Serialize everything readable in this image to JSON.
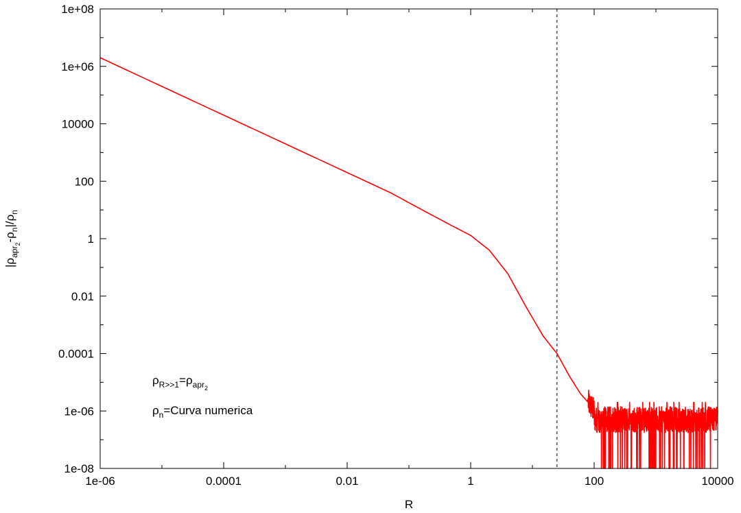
{
  "chart_data": {
    "type": "line",
    "title": "",
    "xlabel": "R",
    "ylabel": "|ρapr2-ρn|/ρn",
    "x_scale": "log",
    "y_scale": "log",
    "xlim": [
      1e-06,
      10000
    ],
    "ylim": [
      1e-08,
      100000000.0
    ],
    "x_ticks": [
      "1e-06",
      "0.0001",
      "0.01",
      "1",
      "100",
      "10000"
    ],
    "y_ticks": [
      "1e-08",
      "1e-06",
      "0.0001",
      "0.01",
      "1",
      "100",
      "10000",
      "1e+06",
      "1e+08"
    ],
    "grid": false,
    "vertical_reference_line": {
      "x": 25,
      "style": "dashed",
      "color": "#000000"
    },
    "series": [
      {
        "color": "#ff0000",
        "x": [
          1e-06,
          1e-05,
          0.0001,
          0.001,
          0.01,
          0.05,
          0.2,
          0.5,
          1,
          2,
          4,
          8,
          15,
          25,
          40,
          60,
          80,
          100,
          200,
          1000,
          10000
        ],
        "y": [
          2000000.0,
          200000.0,
          20000.0,
          2000,
          200,
          40,
          8,
          2.8,
          1.3,
          0.4,
          0.06,
          0.004,
          0.0004,
          0.0001,
          1.6e-05,
          4e-06,
          2e-06,
          1e-06,
          5e-07,
          5e-07,
          5e-07
        ],
        "noise_floor": {
          "from_x": 80,
          "level": 5e-07,
          "description": "noisy numerical floor with dips to 1e-08"
        }
      }
    ],
    "annotations": [
      {
        "parts": [
          {
            "text": "ρ",
            "level": "base"
          },
          {
            "text": "R>>1",
            "level": "sub"
          },
          {
            "text": "=ρ",
            "level": "base"
          },
          {
            "text": "apr",
            "level": "sub"
          },
          {
            "text": "2",
            "level": "subsub"
          }
        ]
      },
      {
        "parts": [
          {
            "text": "ρ",
            "level": "base"
          },
          {
            "text": "n",
            "level": "sub"
          },
          {
            "text": "=Curva numerica",
            "level": "base"
          }
        ]
      }
    ],
    "ylabel_parts": [
      {
        "text": "|ρ",
        "level": "base"
      },
      {
        "text": "apr",
        "level": "sub"
      },
      {
        "text": "2",
        "level": "subsub"
      },
      {
        "text": "-ρ",
        "level": "base"
      },
      {
        "text": "n",
        "level": "sub"
      },
      {
        "text": "|/ρ",
        "level": "base"
      },
      {
        "text": "n",
        "level": "sub"
      }
    ]
  }
}
